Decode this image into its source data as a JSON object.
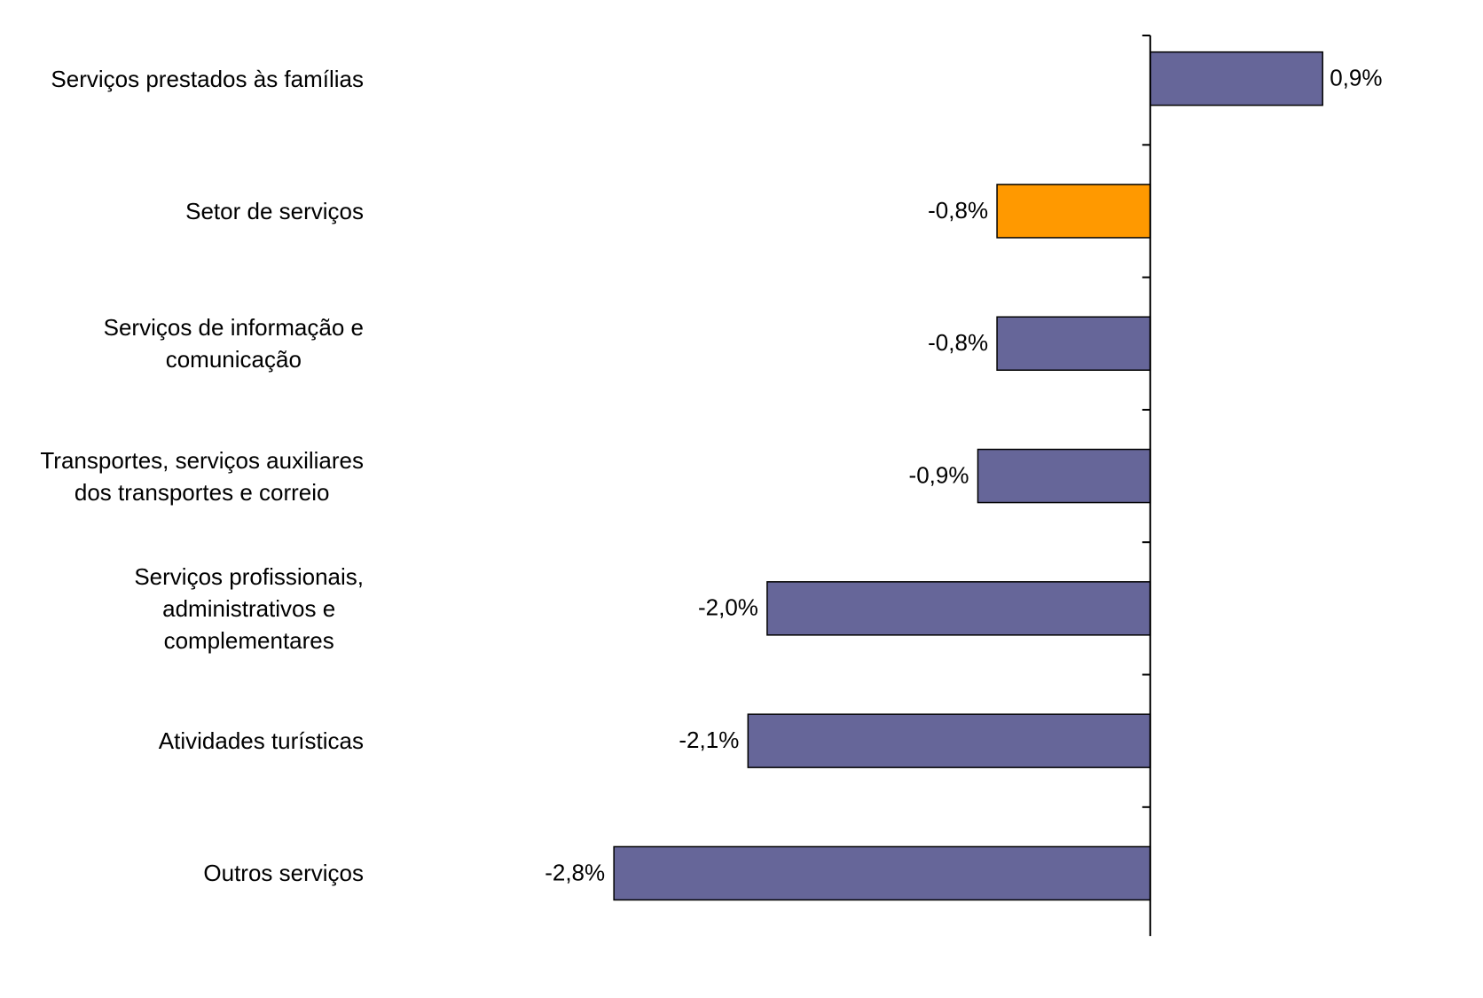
{
  "chart_data": {
    "type": "bar",
    "orientation": "horizontal",
    "categories": [
      "Serviços prestados às famílias",
      "Setor de serviços",
      "Serviços de informação e\ncomunicação",
      "Transportes, serviços auxiliares\ndos transportes e correio",
      "Serviços profissionais,\nadministrativos e\ncomplementares",
      "Atividades turísticas",
      "Outros serviços"
    ],
    "values": [
      0.9,
      -0.8,
      -0.8,
      -0.9,
      -2.0,
      -2.1,
      -2.8
    ],
    "value_labels": [
      "0,9%",
      "-0,8%",
      "-0,8%",
      "-0,9%",
      "-2,0%",
      "-2,1%",
      "-2,8%"
    ],
    "colors": [
      "#666699",
      "#ff9900",
      "#666699",
      "#666699",
      "#666699",
      "#666699",
      "#666699"
    ],
    "xlim": [
      -4,
      1.2
    ]
  }
}
